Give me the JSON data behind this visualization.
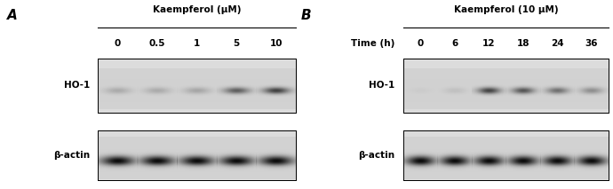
{
  "panel_A": {
    "label": "A",
    "title": "Kaempferol (μM)",
    "concentrations": [
      "0",
      "0.5",
      "1",
      "5",
      "10"
    ],
    "band1_label": "HO-1",
    "band2_label": "β-actin",
    "ho1_intensities": [
      0.22,
      0.22,
      0.25,
      0.65,
      0.82
    ],
    "actin_intensities": [
      1.0,
      1.0,
      1.0,
      1.0,
      1.0
    ],
    "bg_color": "#dcdcdc",
    "band_dark": "#222222",
    "n_lanes": 5
  },
  "panel_B": {
    "label": "B",
    "title": "Kaempferol (10 μM)",
    "time_label": "Time (h)",
    "concentrations": [
      "0",
      "6",
      "12",
      "18",
      "24",
      "36"
    ],
    "band1_label": "HO-1",
    "band2_label": "β-actin",
    "ho1_intensities": [
      0.04,
      0.1,
      0.8,
      0.7,
      0.55,
      0.38
    ],
    "actin_intensities": [
      1.0,
      1.0,
      1.0,
      1.0,
      1.0,
      1.0
    ],
    "bg_color": "#dcdcdc",
    "band_dark": "#222222",
    "n_lanes": 6
  },
  "fig_bg": "#ffffff",
  "label_fontsize": 11,
  "title_fontsize": 7.5,
  "conc_fontsize": 7.5,
  "row_label_fontsize": 7.5
}
